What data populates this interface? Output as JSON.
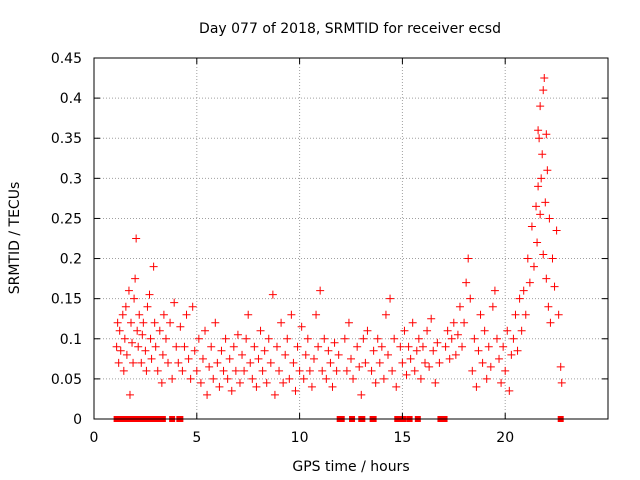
{
  "chart_data": {
    "type": "scatter",
    "title": "Day 077 of 2018, SRMTID for receiver ecsd",
    "xlabel": "GPS time / hours",
    "ylabel": "SRMTID / TECUs",
    "xlim": [
      0,
      25
    ],
    "ylim": [
      0,
      0.45
    ],
    "x_ticks": [
      0,
      5,
      10,
      15,
      20
    ],
    "x_tick_labels": [
      "0",
      "5",
      "10",
      "15",
      "20"
    ],
    "y_ticks": [
      0,
      0.05,
      0.1,
      0.15,
      0.2,
      0.25,
      0.3,
      0.35,
      0.4,
      0.45
    ],
    "y_tick_labels": [
      "0",
      "0.05",
      "0.1",
      "0.15",
      "0.2",
      "0.25",
      "0.3",
      "0.35",
      "0.4",
      "0.45"
    ],
    "grid": true,
    "marker_color": "#ff0000",
    "grid_color": "#a0a0a0",
    "series": [
      {
        "name": "SRMTID",
        "marker": "plus",
        "points": [
          [
            1.1,
            0.09
          ],
          [
            1.15,
            0.12
          ],
          [
            1.2,
            0.07
          ],
          [
            1.25,
            0.11
          ],
          [
            1.3,
            0.085
          ],
          [
            1.4,
            0.13
          ],
          [
            1.45,
            0.06
          ],
          [
            1.5,
            0.1
          ],
          [
            1.55,
            0.14
          ],
          [
            1.6,
            0.08
          ],
          [
            1.7,
            0.16
          ],
          [
            1.75,
            0.03
          ],
          [
            1.8,
            0.12
          ],
          [
            1.85,
            0.095
          ],
          [
            1.9,
            0.07
          ],
          [
            1.95,
            0.15
          ],
          [
            2.0,
            0.175
          ],
          [
            2.05,
            0.225
          ],
          [
            2.1,
            0.11
          ],
          [
            2.15,
            0.09
          ],
          [
            2.2,
            0.13
          ],
          [
            2.3,
            0.07
          ],
          [
            2.35,
            0.105
          ],
          [
            2.4,
            0.12
          ],
          [
            2.5,
            0.085
          ],
          [
            2.55,
            0.06
          ],
          [
            2.6,
            0.14
          ],
          [
            2.7,
            0.155
          ],
          [
            2.75,
            0.1
          ],
          [
            2.8,
            0.075
          ],
          [
            2.9,
            0.19
          ],
          [
            2.95,
            0.12
          ],
          [
            3.0,
            0.09
          ],
          [
            3.1,
            0.06
          ],
          [
            3.2,
            0.11
          ],
          [
            3.3,
            0.045
          ],
          [
            3.35,
            0.08
          ],
          [
            3.4,
            0.13
          ],
          [
            3.5,
            0.1
          ],
          [
            3.6,
            0.07
          ],
          [
            3.7,
            0.12
          ],
          [
            3.8,
            0.05
          ],
          [
            3.9,
            0.145
          ],
          [
            4.0,
            0.09
          ],
          [
            4.1,
            0.07
          ],
          [
            4.2,
            0.115
          ],
          [
            4.3,
            0.06
          ],
          [
            4.4,
            0.09
          ],
          [
            4.5,
            0.13
          ],
          [
            4.6,
            0.075
          ],
          [
            4.7,
            0.05
          ],
          [
            4.8,
            0.14
          ],
          [
            4.9,
            0.085
          ],
          [
            5.0,
            0.06
          ],
          [
            5.1,
            0.1
          ],
          [
            5.2,
            0.045
          ],
          [
            5.3,
            0.075
          ],
          [
            5.4,
            0.11
          ],
          [
            5.5,
            0.03
          ],
          [
            5.6,
            0.065
          ],
          [
            5.7,
            0.09
          ],
          [
            5.8,
            0.05
          ],
          [
            5.9,
            0.12
          ],
          [
            6.0,
            0.07
          ],
          [
            6.1,
            0.04
          ],
          [
            6.2,
            0.085
          ],
          [
            6.3,
            0.06
          ],
          [
            6.4,
            0.1
          ],
          [
            6.5,
            0.05
          ],
          [
            6.6,
            0.075
          ],
          [
            6.7,
            0.035
          ],
          [
            6.8,
            0.09
          ],
          [
            6.9,
            0.06
          ],
          [
            7.0,
            0.105
          ],
          [
            7.1,
            0.045
          ],
          [
            7.2,
            0.08
          ],
          [
            7.3,
            0.06
          ],
          [
            7.4,
            0.1
          ],
          [
            7.5,
            0.13
          ],
          [
            7.6,
            0.07
          ],
          [
            7.7,
            0.05
          ],
          [
            7.8,
            0.09
          ],
          [
            7.9,
            0.04
          ],
          [
            8.0,
            0.075
          ],
          [
            8.1,
            0.11
          ],
          [
            8.2,
            0.06
          ],
          [
            8.3,
            0.085
          ],
          [
            8.4,
            0.045
          ],
          [
            8.5,
            0.1
          ],
          [
            8.6,
            0.07
          ],
          [
            8.7,
            0.155
          ],
          [
            8.8,
            0.03
          ],
          [
            8.9,
            0.09
          ],
          [
            9.0,
            0.06
          ],
          [
            9.1,
            0.12
          ],
          [
            9.2,
            0.045
          ],
          [
            9.3,
            0.08
          ],
          [
            9.4,
            0.1
          ],
          [
            9.5,
            0.05
          ],
          [
            9.6,
            0.13
          ],
          [
            9.7,
            0.07
          ],
          [
            9.8,
            0.035
          ],
          [
            9.9,
            0.09
          ],
          [
            10.0,
            0.06
          ],
          [
            10.1,
            0.115
          ],
          [
            10.2,
            0.05
          ],
          [
            10.3,
            0.08
          ],
          [
            10.4,
            0.1
          ],
          [
            10.5,
            0.06
          ],
          [
            10.6,
            0.04
          ],
          [
            10.7,
            0.075
          ],
          [
            10.8,
            0.13
          ],
          [
            10.9,
            0.09
          ],
          [
            11.0,
            0.16
          ],
          [
            11.1,
            0.06
          ],
          [
            11.2,
            0.1
          ],
          [
            11.3,
            0.05
          ],
          [
            11.4,
            0.085
          ],
          [
            11.5,
            0.07
          ],
          [
            11.6,
            0.04
          ],
          [
            11.7,
            0.095
          ],
          [
            11.8,
            0.06
          ],
          [
            11.9,
            0.08
          ],
          [
            12.2,
            0.1
          ],
          [
            12.3,
            0.06
          ],
          [
            12.4,
            0.12
          ],
          [
            12.5,
            0.075
          ],
          [
            12.6,
            0.05
          ],
          [
            12.8,
            0.09
          ],
          [
            12.9,
            0.065
          ],
          [
            13.0,
            0.03
          ],
          [
            13.1,
            0.1
          ],
          [
            13.2,
            0.07
          ],
          [
            13.3,
            0.11
          ],
          [
            13.5,
            0.06
          ],
          [
            13.6,
            0.085
          ],
          [
            13.7,
            0.045
          ],
          [
            13.8,
            0.1
          ],
          [
            13.9,
            0.07
          ],
          [
            14.0,
            0.09
          ],
          [
            14.1,
            0.05
          ],
          [
            14.2,
            0.13
          ],
          [
            14.3,
            0.08
          ],
          [
            14.4,
            0.15
          ],
          [
            14.5,
            0.06
          ],
          [
            14.6,
            0.1
          ],
          [
            14.7,
            0.04
          ],
          [
            14.9,
            0.09
          ],
          [
            15.0,
            0.07
          ],
          [
            15.1,
            0.11
          ],
          [
            15.2,
            0.055
          ],
          [
            15.3,
            0.09
          ],
          [
            15.4,
            0.075
          ],
          [
            15.5,
            0.12
          ],
          [
            15.6,
            0.06
          ],
          [
            15.7,
            0.085
          ],
          [
            15.8,
            0.1
          ],
          [
            15.9,
            0.05
          ],
          [
            16.0,
            0.09
          ],
          [
            16.1,
            0.07
          ],
          [
            16.2,
            0.11
          ],
          [
            16.3,
            0.065
          ],
          [
            16.4,
            0.125
          ],
          [
            16.5,
            0.085
          ],
          [
            16.6,
            0.045
          ],
          [
            16.7,
            0.095
          ],
          [
            16.8,
            0.07
          ],
          [
            17.1,
            0.09
          ],
          [
            17.2,
            0.11
          ],
          [
            17.3,
            0.075
          ],
          [
            17.4,
            0.1
          ],
          [
            17.5,
            0.12
          ],
          [
            17.6,
            0.08
          ],
          [
            17.7,
            0.105
          ],
          [
            17.8,
            0.14
          ],
          [
            17.9,
            0.09
          ],
          [
            18.0,
            0.12
          ],
          [
            18.1,
            0.17
          ],
          [
            18.2,
            0.2
          ],
          [
            18.3,
            0.15
          ],
          [
            18.4,
            0.06
          ],
          [
            18.5,
            0.1
          ],
          [
            18.6,
            0.04
          ],
          [
            18.7,
            0.085
          ],
          [
            18.8,
            0.13
          ],
          [
            18.9,
            0.07
          ],
          [
            19.0,
            0.11
          ],
          [
            19.1,
            0.05
          ],
          [
            19.2,
            0.09
          ],
          [
            19.3,
            0.065
          ],
          [
            19.4,
            0.14
          ],
          [
            19.5,
            0.16
          ],
          [
            19.6,
            0.1
          ],
          [
            19.7,
            0.075
          ],
          [
            19.8,
            0.045
          ],
          [
            19.9,
            0.09
          ],
          [
            20.0,
            0.06
          ],
          [
            20.1,
            0.11
          ],
          [
            20.2,
            0.035
          ],
          [
            20.3,
            0.08
          ],
          [
            20.4,
            0.1
          ],
          [
            20.5,
            0.13
          ],
          [
            20.6,
            0.085
          ],
          [
            20.7,
            0.15
          ],
          [
            20.8,
            0.11
          ],
          [
            20.9,
            0.16
          ],
          [
            21.0,
            0.13
          ],
          [
            21.1,
            0.2
          ],
          [
            21.2,
            0.17
          ],
          [
            21.3,
            0.24
          ],
          [
            21.4,
            0.19
          ],
          [
            21.5,
            0.265
          ],
          [
            21.55,
            0.22
          ],
          [
            21.6,
            0.29
          ],
          [
            21.65,
            0.35
          ],
          [
            21.7,
            0.255
          ],
          [
            21.75,
            0.3
          ],
          [
            21.8,
            0.33
          ],
          [
            21.85,
            0.205
          ],
          [
            21.9,
            0.425
          ],
          [
            21.95,
            0.27
          ],
          [
            22.0,
            0.175
          ],
          [
            22.05,
            0.31
          ],
          [
            22.1,
            0.14
          ],
          [
            22.15,
            0.25
          ],
          [
            22.2,
            0.12
          ],
          [
            22.3,
            0.2
          ],
          [
            22.4,
            0.165
          ],
          [
            22.5,
            0.235
          ],
          [
            22.6,
            0.13
          ],
          [
            22.7,
            0.065
          ],
          [
            22.75,
            0.045
          ],
          [
            21.85,
            0.41
          ],
          [
            21.7,
            0.39
          ],
          [
            22.0,
            0.355
          ],
          [
            21.6,
            0.36
          ]
        ]
      },
      {
        "name": "zero markers",
        "marker": "square",
        "x": [
          1.1,
          1.35,
          1.6,
          1.85,
          2.1,
          2.35,
          2.6,
          2.85,
          3.1,
          3.35,
          3.8,
          4.15,
          4.2,
          11.95,
          12.05,
          12.55,
          13.0,
          13.05,
          13.55,
          13.6,
          14.75,
          14.8,
          15.05,
          15.35,
          15.75,
          16.85,
          16.95,
          17.05,
          22.7
        ],
        "y": 0
      }
    ]
  }
}
